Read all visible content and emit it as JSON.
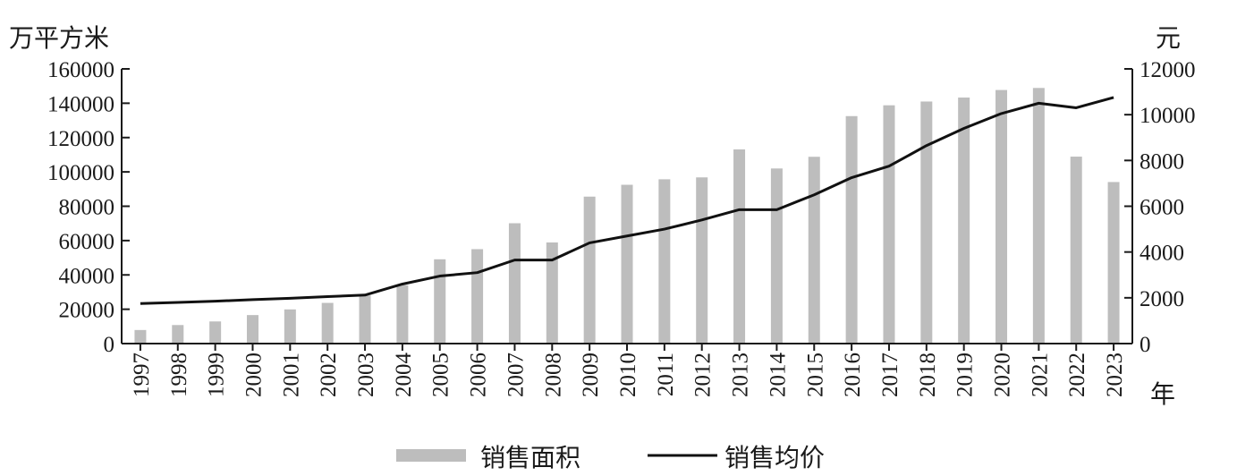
{
  "chart_data": {
    "type": "bar",
    "title": "",
    "left_unit": "万平方米",
    "right_unit": "元",
    "x_unit": "年",
    "categories": [
      "1997",
      "1998",
      "1999",
      "2000",
      "2001",
      "2002",
      "2003",
      "2004",
      "2005",
      "2006",
      "2007",
      "2008",
      "2009",
      "2010",
      "2011",
      "2012",
      "2013",
      "2014",
      "2015",
      "2016",
      "2017",
      "2018",
      "2019",
      "2020",
      "2021",
      "2022",
      "2023"
    ],
    "series": [
      {
        "name": "销售面积",
        "type": "bar",
        "axis": "left",
        "color": "#bdbdbd",
        "values": [
          7900,
          10800,
          12900,
          16600,
          19900,
          23700,
          28000,
          34000,
          49100,
          55000,
          70100,
          58900,
          85600,
          92500,
          95700,
          96800,
          113100,
          102000,
          108800,
          132500,
          138800,
          141000,
          143300,
          147700,
          148900,
          108900,
          94100
        ]
      },
      {
        "name": "销售均价",
        "type": "line",
        "axis": "right",
        "color": "#111111",
        "values": [
          1750,
          1800,
          1850,
          1920,
          1980,
          2050,
          2120,
          2600,
          2950,
          3100,
          3650,
          3650,
          4400,
          4700,
          5000,
          5400,
          5850,
          5850,
          6500,
          7250,
          7750,
          8650,
          9400,
          10050,
          10500,
          10300,
          10750
        ]
      }
    ],
    "left_ylim": [
      0,
      160000
    ],
    "right_ylim": [
      0,
      12000
    ],
    "left_ticks": [
      "0",
      "20000",
      "40000",
      "60000",
      "80000",
      "100000",
      "120000",
      "140000",
      "160000"
    ],
    "right_ticks": [
      "0",
      "2000",
      "4000",
      "6000",
      "8000",
      "10000",
      "12000"
    ],
    "grid": false,
    "legend_position": "bottom-center"
  }
}
